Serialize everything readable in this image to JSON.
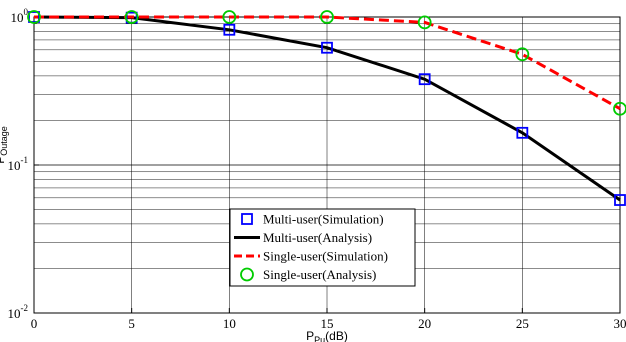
{
  "chart_data": {
    "type": "line",
    "title": "",
    "xlabel": "P",
    "xlabel_sub": "Pu",
    "xlabel_suffix": "(dB)",
    "ylabel": "P",
    "ylabel_sub": "Outage",
    "xlim": [
      0,
      30
    ],
    "ylim": [
      0.01,
      1
    ],
    "yscale": "log",
    "grid": true,
    "legend_position": "bottom-center",
    "x_ticks": [
      "0",
      "5",
      "10",
      "15",
      "20",
      "25",
      "30"
    ],
    "y_ticks": [
      {
        "base": "10",
        "exp": "0"
      },
      {
        "base": "10",
        "exp": "-1"
      },
      {
        "base": "10",
        "exp": "-2"
      }
    ],
    "x": [
      0,
      5,
      10,
      15,
      20,
      25,
      30
    ],
    "series": [
      {
        "name": "Multi-user(Simulation)",
        "style": "square-markers",
        "color": "#0000ff",
        "values": [
          1.0,
          0.99,
          0.82,
          0.62,
          0.38,
          0.165,
          0.058
        ]
      },
      {
        "name": "Multi-user(Analysis)",
        "style": "solid-line",
        "color": "#000000",
        "values": [
          1.0,
          0.99,
          0.82,
          0.62,
          0.38,
          0.165,
          0.058
        ]
      },
      {
        "name": "Single-user(Simulation)",
        "style": "dashed-line",
        "color": "#ff0000",
        "values": [
          1.0,
          1.0,
          1.0,
          1.0,
          0.92,
          0.56,
          0.24
        ]
      },
      {
        "name": "Single-user(Analysis)",
        "style": "circle-markers",
        "color": "#00cc00",
        "values": [
          1.0,
          1.0,
          1.0,
          1.0,
          0.92,
          0.56,
          0.24
        ]
      }
    ]
  }
}
